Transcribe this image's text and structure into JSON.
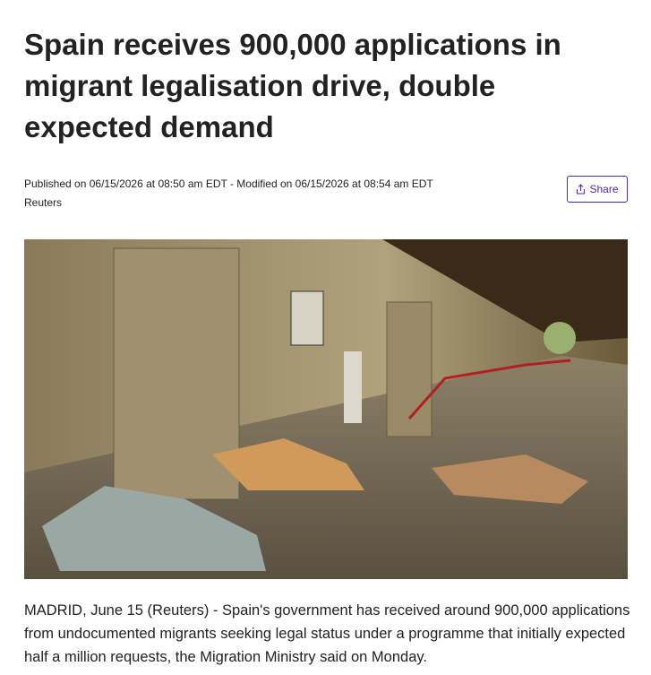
{
  "header": {
    "title": "Spain receives 900,000 applications in migrant legalisation drive, double expected demand"
  },
  "meta": {
    "published": "Published on 06/15/2026 at 08:50 am EDT - Modified on 06/15/2026 at 08:54 am EDT",
    "source": "Reuters"
  },
  "share_button": {
    "label": "Share"
  },
  "article": {
    "paragraph": "MADRID, June 15 (Reuters) - Spain's government has received around 900,000 applications from undocumented migrants seeking legal status under a programme that initially expected half a million requests, the Migration Ministry said on Monday."
  }
}
